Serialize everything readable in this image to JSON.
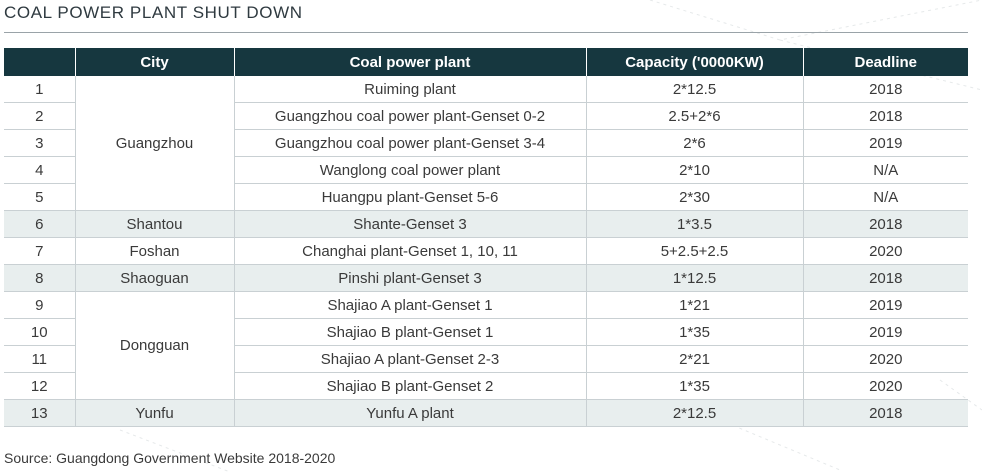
{
  "title": "COAL POWER PLANT SHUT DOWN",
  "source": "Source: Guangdong Government Website 2018-2020",
  "colors": {
    "header_bg": "#16373f",
    "shade_bg": "#e8eeee",
    "rule": "#c9d0d3"
  },
  "table": {
    "headers": [
      "",
      "City",
      "Coal power plant",
      "Capacity ('0000KW)",
      "Deadline"
    ],
    "rows": [
      {
        "no": "1",
        "city": "Guangzhou",
        "plant": "Ruiming plant",
        "capacity": "2*12.5",
        "deadline": "2018"
      },
      {
        "no": "2",
        "city": "",
        "plant": "Guangzhou coal power plant-Genset 0-2",
        "capacity": "2.5+2*6",
        "deadline": "2018"
      },
      {
        "no": "3",
        "city": "",
        "plant": "Guangzhou coal power plant-Genset 3-4",
        "capacity": "2*6",
        "deadline": "2019"
      },
      {
        "no": "4",
        "city": "",
        "plant": "Wanglong coal power plant",
        "capacity": "2*10",
        "deadline": "N/A"
      },
      {
        "no": "5",
        "city": "",
        "plant": "Huangpu plant-Genset 5-6",
        "capacity": "2*30",
        "deadline": "N/A"
      },
      {
        "no": "6",
        "city": "Shantou",
        "plant": "Shante-Genset 3",
        "capacity": "1*3.5",
        "deadline": "2018"
      },
      {
        "no": "7",
        "city": "Foshan",
        "plant": "Changhai plant-Genset 1, 10, 11",
        "capacity": "5+2.5+2.5",
        "deadline": "2020"
      },
      {
        "no": "8",
        "city": "Shaoguan",
        "plant": "Pinshi plant-Genset 3",
        "capacity": "1*12.5",
        "deadline": "2018"
      },
      {
        "no": "9",
        "city": "Dongguan",
        "plant": "Shajiao A plant-Genset 1",
        "capacity": "1*21",
        "deadline": "2019"
      },
      {
        "no": "10",
        "city": "",
        "plant": "Shajiao B plant-Genset 1",
        "capacity": "1*35",
        "deadline": "2019"
      },
      {
        "no": "11",
        "city": "",
        "plant": "Shajiao A plant-Genset 2-3",
        "capacity": "2*21",
        "deadline": "2020"
      },
      {
        "no": "12",
        "city": "",
        "plant": "Shajiao B plant-Genset 2",
        "capacity": "1*35",
        "deadline": "2020"
      },
      {
        "no": "13",
        "city": "Yunfu",
        "plant": "Yunfu A plant",
        "capacity": "2*12.5",
        "deadline": "2018"
      }
    ]
  }
}
